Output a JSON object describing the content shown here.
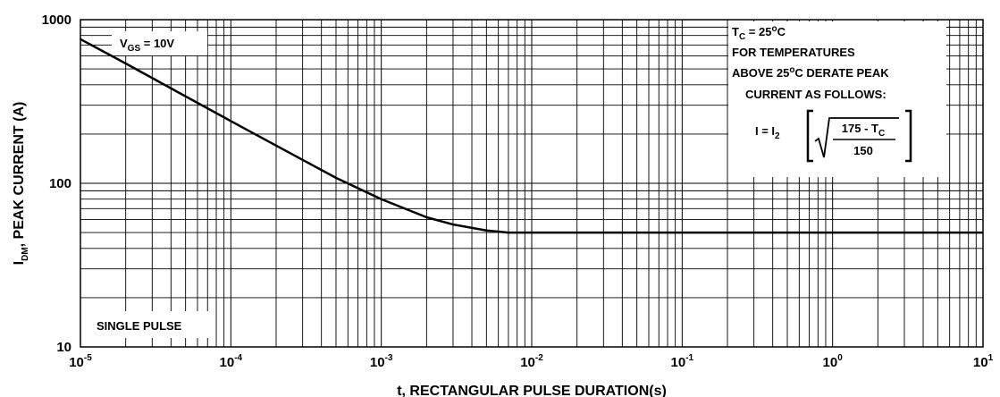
{
  "chart_data": {
    "type": "line",
    "x_scale": "log",
    "y_scale": "log",
    "xlim": [
      1e-05,
      10
    ],
    "ylim": [
      10,
      1000
    ],
    "xlabel": "t, RECTANGULAR PULSE DURATION(s)",
    "ylabel": {
      "main": "I",
      "sub": "DM",
      "rest": ", PEAK CURRENT (A)"
    },
    "x_ticks": [
      {
        "value": 1e-05,
        "base": "10",
        "exp": "-5"
      },
      {
        "value": 0.0001,
        "base": "10",
        "exp": "-4"
      },
      {
        "value": 0.001,
        "base": "10",
        "exp": "-3"
      },
      {
        "value": 0.01,
        "base": "10",
        "exp": "-2"
      },
      {
        "value": 0.1,
        "base": "10",
        "exp": "-1"
      },
      {
        "value": 1,
        "base": "10",
        "exp": "0"
      },
      {
        "value": 10,
        "base": "10",
        "exp": "1"
      }
    ],
    "y_ticks": [
      {
        "value": 10,
        "label": "10"
      },
      {
        "value": 100,
        "label": "100"
      },
      {
        "value": 1000,
        "label": "1000"
      }
    ],
    "grid": true,
    "series": [
      {
        "color": "#000000",
        "points": [
          [
            1e-05,
            760
          ],
          [
            2e-05,
            540
          ],
          [
            3e-05,
            440
          ],
          [
            5e-05,
            340
          ],
          [
            0.0001,
            240
          ],
          [
            0.0002,
            170
          ],
          [
            0.0003,
            139
          ],
          [
            0.0005,
            108
          ],
          [
            0.001,
            80
          ],
          [
            0.002,
            62
          ],
          [
            0.003,
            56
          ],
          [
            0.005,
            51.5
          ],
          [
            0.007,
            50
          ],
          [
            0.01,
            50
          ],
          [
            0.1,
            50
          ],
          [
            1,
            50
          ],
          [
            10,
            50
          ]
        ]
      }
    ]
  },
  "annotations": {
    "vgs": {
      "main": "V",
      "sub": "GS",
      "rest": " = 10V"
    },
    "single_pulse": "SINGLE PULSE",
    "tc": {
      "main": "T",
      "sub": "C",
      "rest1": " = 25",
      "sup": "o",
      "rest2": "C"
    },
    "derate_line1": "FOR TEMPERATURES",
    "derate_line2": {
      "pre": "ABOVE 25",
      "sup": "o",
      "post": "C DERATE PEAK"
    },
    "derate_line3": "CURRENT AS FOLLOWS:",
    "formula": {
      "lhs_main": "I = I",
      "lhs_sub": "2",
      "numerator_main": "175 - T",
      "numerator_sub": "C",
      "denominator": "150"
    }
  }
}
